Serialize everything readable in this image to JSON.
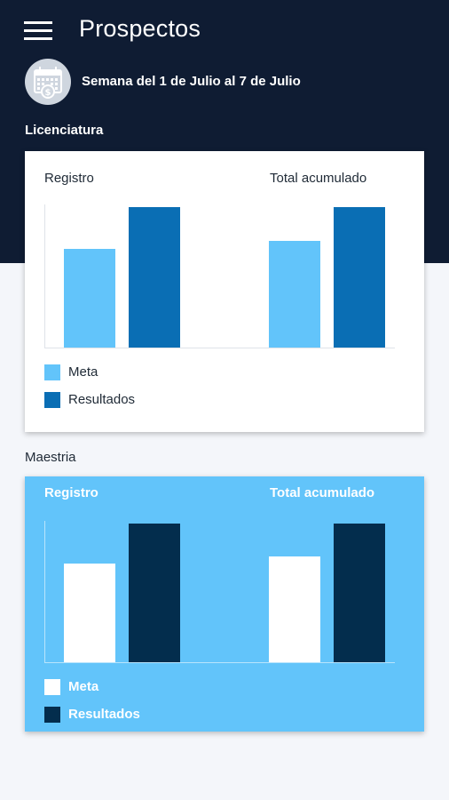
{
  "app": {
    "title": "Prospectos",
    "week_label": "Semana del 1 de Julio al 7 de Julio"
  },
  "icons": {
    "menu": "menu-icon",
    "calendar": "calendar-money-icon"
  },
  "colors": {
    "header_bg": "#0f1c33",
    "meta_light": "#62c4fa",
    "resultados_blue": "#0a6eb4",
    "maestria_bg": "#62c4fa",
    "maestria_meta": "#ffffff",
    "maestria_resultados": "#032d4d"
  },
  "sections": [
    {
      "label": "Licenciatura",
      "chart_titles": [
        "Registro",
        "Total acumulado"
      ],
      "legend": [
        {
          "label": "Meta",
          "color": "#62c4fa"
        },
        {
          "label": "Resultados",
          "color": "#0a6eb4"
        }
      ]
    },
    {
      "label": "Maestria",
      "chart_titles": [
        "Registro",
        "Total acumulado"
      ],
      "legend": [
        {
          "label": "Meta",
          "color": "#ffffff"
        },
        {
          "label": "Resultados",
          "color": "#032d4d"
        }
      ]
    }
  ],
  "chart_data": [
    {
      "type": "bar",
      "categories": [
        "Registro",
        "Total acumulado"
      ],
      "series": [
        {
          "name": "Meta",
          "values": [
            70,
            76
          ]
        },
        {
          "name": "Resultados",
          "values": [
            100,
            100
          ]
        }
      ],
      "ylim": [
        0,
        100
      ],
      "grid": false,
      "legend_position": "bottom-left"
    },
    {
      "type": "bar",
      "categories": [
        "Registro",
        "Total acumulado"
      ],
      "series": [
        {
          "name": "Meta",
          "values": [
            71,
            76
          ]
        },
        {
          "name": "Resultados",
          "values": [
            100,
            100
          ]
        }
      ],
      "ylim": [
        0,
        100
      ],
      "grid": false,
      "legend_position": "bottom-left"
    }
  ]
}
